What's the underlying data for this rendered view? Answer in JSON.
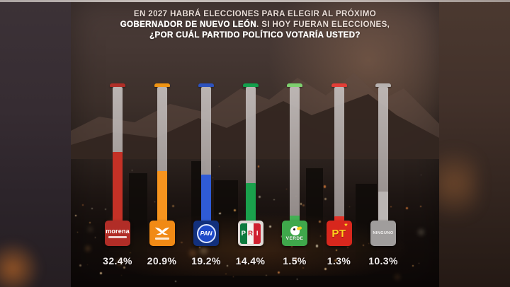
{
  "title": {
    "line1": "EN 2027 HABRÁ ELECCIONES PARA ELEGIR AL PRÓXIMO",
    "line2_strong": "GOBERNADOR DE NUEVO LEÓN",
    "line2_rest": ". SI HOY FUERAN ELECCIONES,",
    "line3": "¿POR CUÁL PARTIDO POLÍTICO VOTARÍA USTED?"
  },
  "chart_data": {
    "type": "bar",
    "title": "EN 2027 HABRÁ ELECCIONES PARA ELEGIR AL PRÓXIMO GOBERNADOR DE NUEVO LEÓN. SI HOY FUERAN ELECCIONES, ¿POR CUÁL PARTIDO POLÍTICO VOTARÍA USTED?",
    "categories": [
      "MORENA",
      "MOVIMIENTO CIUDADANO",
      "PAN",
      "PRI",
      "PARTIDO VERDE",
      "PT",
      "NINGUNO"
    ],
    "values": [
      32.4,
      20.9,
      19.2,
      14.4,
      1.5,
      1.3,
      10.3
    ],
    "unit": "%",
    "ylim": [
      0,
      100
    ],
    "grid": false,
    "legend": false,
    "orientation": "vertical-thermometer",
    "track_color": "#a89f9d",
    "parties": [
      {
        "id": "morena",
        "name": "MORENA",
        "value": 32.4,
        "label": "32.4%",
        "logo_style": "morena",
        "bar_color": "#c43126",
        "cap_color": "#b02e27",
        "logo_bg": "#b12d27",
        "logo_text": "morena"
      },
      {
        "id": "mc",
        "name": "MOVIMIENTO CIUDADANO",
        "value": 20.9,
        "label": "20.9%",
        "logo_style": "mc",
        "bar_color": "#f7941e",
        "cap_color": "#ef9413",
        "logo_bg": "#f18a15"
      },
      {
        "id": "pan",
        "name": "PAN",
        "value": 19.2,
        "label": "19.2%",
        "logo_style": "pan",
        "bar_color": "#2f5bd6",
        "cap_color": "#2c52be",
        "logo_bg": "#12307c",
        "logo_text": "PAN"
      },
      {
        "id": "pri",
        "name": "PRI",
        "value": 14.4,
        "label": "14.4%",
        "logo_style": "pri",
        "bar_color": "#1aa14c",
        "cap_color": "#12a04c",
        "logo_bg": "#ded9d5",
        "letters": [
          "P",
          "R",
          "I"
        ],
        "stripe_colors": [
          "#0c7a3e",
          "#f5f3f0",
          "#cf2030"
        ],
        "letter_colors": [
          "#ffffff",
          "#cf2030",
          "#ffffff"
        ]
      },
      {
        "id": "verde",
        "name": "PARTIDO VERDE",
        "value": 1.5,
        "label": "1.5%",
        "logo_style": "verde",
        "bar_color": "#44b054",
        "cap_color": "#7ed06f",
        "logo_bg": "#3fa84b",
        "logo_text": "VERDE"
      },
      {
        "id": "pt",
        "name": "PT",
        "value": 1.3,
        "label": "1.3%",
        "logo_style": "pt",
        "bar_color": "#e23127",
        "cap_color": "#e23d36",
        "logo_bg": "#d8271d",
        "logo_text": "PT",
        "star": "★"
      },
      {
        "id": "ninguno",
        "name": "NINGUNO",
        "value": 10.3,
        "label": "10.3%",
        "logo_style": "ninguno",
        "bar_color": "#bab5b3",
        "cap_color": "#b7b2b0",
        "logo_bg": "#a09d9c",
        "logo_text": "NINGUNO"
      }
    ]
  },
  "colors": {
    "background_top": "#4b3c39",
    "background_bottom": "#0d0807",
    "text": "#f2eded",
    "city_light_palette": [
      "#ffb45e",
      "#ffd9a0",
      "#ff8f3f",
      "#fff2cf",
      "#d98a4a"
    ]
  }
}
